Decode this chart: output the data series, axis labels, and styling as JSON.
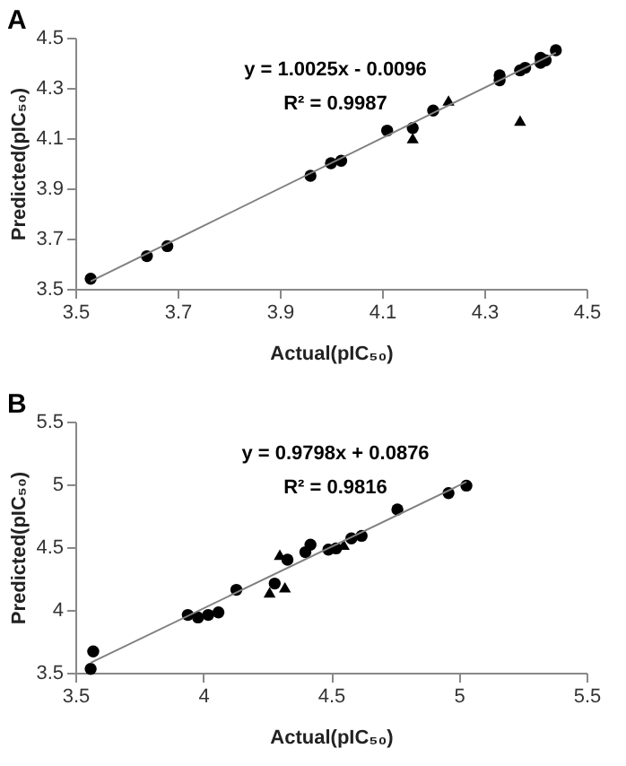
{
  "chart_data": [
    {
      "type": "scatter",
      "title": "A",
      "xlabel": "Actual(pIC₅₀)",
      "ylabel": "Predicted(pIC₅₀)",
      "xlim": [
        3.5,
        4.5
      ],
      "ylim": [
        3.5,
        4.5
      ],
      "xticks": [
        3.5,
        3.7,
        3.9,
        4.1,
        4.3,
        4.5
      ],
      "yticks": [
        3.5,
        3.7,
        3.9,
        4.1,
        4.3,
        4.5
      ],
      "grid": false,
      "annotations": [
        "y = 1.0025x - 0.0096",
        "R² = 0.9987"
      ],
      "series": [
        {
          "type": "scatter",
          "marker": "circle",
          "color": "#000000",
          "x": [
            3.53,
            3.64,
            3.68,
            3.96,
            4.0,
            4.02,
            4.11,
            4.16,
            4.2,
            4.33,
            4.33,
            4.37,
            4.38,
            4.41,
            4.41,
            4.42,
            4.44
          ],
          "values": [
            3.54,
            3.63,
            3.67,
            3.95,
            4.0,
            4.01,
            4.13,
            4.14,
            4.21,
            4.33,
            4.35,
            4.37,
            4.38,
            4.4,
            4.42,
            4.41,
            4.45
          ]
        },
        {
          "type": "scatter",
          "marker": "triangle",
          "color": "#000000",
          "x": [
            4.16,
            4.23,
            4.37
          ],
          "values": [
            4.1,
            4.25,
            4.17
          ]
        },
        {
          "type": "line",
          "color": "#808080",
          "x": [
            3.53,
            4.44
          ],
          "values": [
            3.53,
            4.44
          ]
        }
      ]
    },
    {
      "type": "scatter",
      "title": "B",
      "xlabel": "Actual(pIC₅₀)",
      "ylabel": "Predicted(pIC₅₀)",
      "xlim": [
        3.5,
        5.5
      ],
      "ylim": [
        3.5,
        5.5
      ],
      "xticks": [
        3.5,
        4,
        4.5,
        5,
        5.5
      ],
      "yticks": [
        3.5,
        4,
        4.5,
        5,
        5.5
      ],
      "grid": false,
      "annotations": [
        "y = 0.9798x + 0.0876",
        "R² = 0.9816"
      ],
      "series": [
        {
          "type": "scatter",
          "marker": "circle",
          "color": "#000000",
          "x": [
            3.56,
            3.57,
            3.94,
            3.98,
            4.02,
            4.06,
            4.13,
            4.28,
            4.33,
            4.4,
            4.42,
            4.49,
            4.52,
            4.58,
            4.62,
            4.76,
            4.96,
            5.03
          ],
          "values": [
            3.53,
            3.67,
            3.96,
            3.94,
            3.96,
            3.98,
            4.16,
            4.21,
            4.4,
            4.46,
            4.52,
            4.48,
            4.49,
            4.57,
            4.59,
            4.8,
            4.93,
            4.99
          ]
        },
        {
          "type": "scatter",
          "marker": "triangle",
          "color": "#000000",
          "x": [
            4.26,
            4.3,
            4.32,
            4.55
          ],
          "values": [
            4.14,
            4.44,
            4.18,
            4.52
          ]
        },
        {
          "type": "line",
          "color": "#808080",
          "x": [
            3.56,
            5.03
          ],
          "values": [
            3.58,
            5.02
          ]
        }
      ]
    }
  ]
}
